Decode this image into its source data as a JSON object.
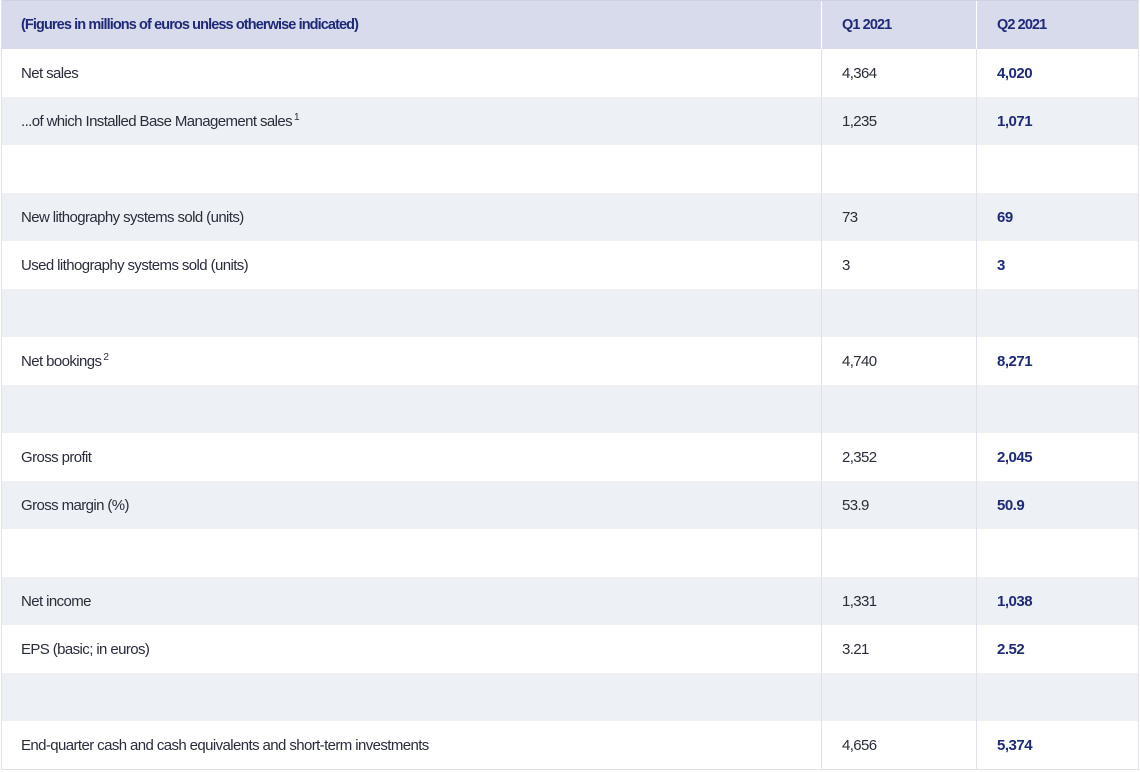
{
  "table": {
    "header": {
      "label": "(Figures in millions of euros unless otherwise indicated)",
      "q1": "Q1 2021",
      "q2": "Q2 2021"
    },
    "rows": [
      {
        "label": "Net sales",
        "sup": "",
        "q1": "4,364",
        "q2": "4,020"
      },
      {
        "label": "...of which Installed Base Management sales",
        "sup": "1",
        "q1": "1,235",
        "q2": "1,071"
      },
      {
        "label": "",
        "sup": "",
        "q1": "",
        "q2": ""
      },
      {
        "label": "New lithography systems sold (units)",
        "sup": "",
        "q1": "73",
        "q2": "69"
      },
      {
        "label": "Used lithography systems sold (units)",
        "sup": "",
        "q1": "3",
        "q2": "3"
      },
      {
        "label": "",
        "sup": "",
        "q1": "",
        "q2": ""
      },
      {
        "label": "Net bookings",
        "sup": "2",
        "q1": "4,740",
        "q2": "8,271"
      },
      {
        "label": "",
        "sup": "",
        "q1": "",
        "q2": ""
      },
      {
        "label": "Gross profit",
        "sup": "",
        "q1": "2,352",
        "q2": "2,045"
      },
      {
        "label": "Gross margin (%)",
        "sup": "",
        "q1": "53.9",
        "q2": "50.9"
      },
      {
        "label": "",
        "sup": "",
        "q1": "",
        "q2": ""
      },
      {
        "label": "Net income",
        "sup": "",
        "q1": "1,331",
        "q2": "1,038"
      },
      {
        "label": "EPS (basic; in euros)",
        "sup": "",
        "q1": "3.21",
        "q2": "2.52"
      },
      {
        "label": "",
        "sup": "",
        "q1": "",
        "q2": ""
      },
      {
        "label": "End-quarter cash and cash equivalents and short-term investments",
        "sup": "",
        "q1": "4,656",
        "q2": "5,374"
      }
    ]
  },
  "colors": {
    "header_bg": "#d8dbeb",
    "stripe_bg": "#edf0f4",
    "accent_text": "#1e2a78",
    "body_text": "#2a2d3a"
  }
}
